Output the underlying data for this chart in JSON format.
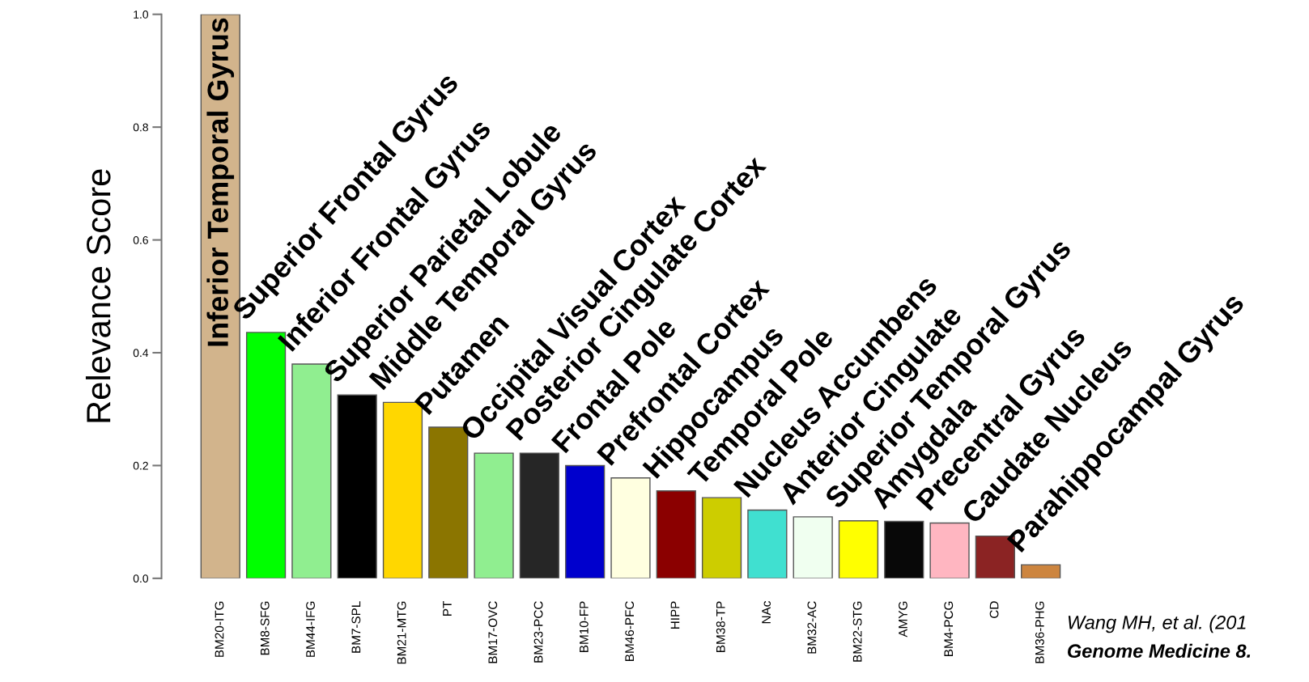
{
  "chart_data": {
    "type": "bar",
    "ylabel": "Relevance Score",
    "categories": [
      "BM20-ITG",
      "BM8-SFG",
      "BM44-IFG",
      "BM7-SPL",
      "BM21-MTG",
      "PT",
      "BM17-OVC",
      "BM23-PCC",
      "BM10-FP",
      "BM46-PFC",
      "HIPP",
      "BM38-TP",
      "NAc",
      "BM32-AC",
      "BM22-STG",
      "AMYG",
      "BM4-PCG",
      "CD",
      "BM36-PHG"
    ],
    "values": [
      1.0,
      0.436,
      0.38,
      0.325,
      0.312,
      0.268,
      0.222,
      0.222,
      0.2,
      0.178,
      0.155,
      0.143,
      0.121,
      0.109,
      0.102,
      0.101,
      0.098,
      0.075,
      0.024
    ],
    "colors": [
      "#d2b48c",
      "#00ff00",
      "#90ee90",
      "#000000",
      "#ffd700",
      "#8b7500",
      "#90ee90",
      "#262626",
      "#0000cd",
      "#ffffe0",
      "#8b0000",
      "#cdcd00",
      "#40e0d0",
      "#f0fff0",
      "#ffff00",
      "#080808",
      "#ffb6c1",
      "#8b2323",
      "#cd853f"
    ],
    "ylim": [
      0,
      1.0
    ],
    "yticks": [
      {
        "value": 0,
        "label": "0.0"
      },
      {
        "value": 0.2,
        "label": "0.2"
      },
      {
        "value": 0.4,
        "label": "0.4"
      },
      {
        "value": 0.6,
        "label": "0.6"
      },
      {
        "value": 0.8,
        "label": "0.8"
      },
      {
        "value": 1.0,
        "label": "1.0"
      }
    ],
    "grid": false,
    "legend": false,
    "annotations": [
      {
        "text": "Inferior Temporal Gyrus",
        "x": "BM20-ITG",
        "y": 1.0
      },
      {
        "text": "Superior Frontal Gyrus",
        "x": "BM8-SFG",
        "y": 0.436
      },
      {
        "text": "Inferior Frontal Gyrus",
        "x": "BM44-IFG",
        "y": 0.38
      },
      {
        "text": "Superior Parietal Lobule",
        "x": "BM7-SPL",
        "y": 0.325
      },
      {
        "text": "Middle Temporal Gyrus",
        "x": "BM21-MTG",
        "y": 0.312
      },
      {
        "text": "Putamen",
        "x": "PT",
        "y": 0.268
      },
      {
        "text": "Occipital Visual Cortex",
        "x": "BM17-OVC",
        "y": 0.222
      },
      {
        "text": "Posterior Cingulate Cortex",
        "x": "BM23-PCC",
        "y": 0.222
      },
      {
        "text": "Frontal Pole",
        "x": "BM10-FP",
        "y": 0.2
      },
      {
        "text": "Prefrontal Cortex",
        "x": "BM46-PFC",
        "y": 0.178
      },
      {
        "text": "Hippocampus",
        "x": "HIPP",
        "y": 0.155
      },
      {
        "text": "Temporal Pole",
        "x": "BM38-TP",
        "y": 0.143
      },
      {
        "text": "Nucleus Accumbens",
        "x": "NAc",
        "y": 0.121
      },
      {
        "text": "Anterior Cingulate",
        "x": "BM32-AC",
        "y": 0.109
      },
      {
        "text": "Superior Temporal Gyrus",
        "x": "BM22-STG",
        "y": 0.102
      },
      {
        "text": "Amygdala",
        "x": "AMYG",
        "y": 0.101
      },
      {
        "text": "Precentral Gyrus",
        "x": "BM4-PCG",
        "y": 0.098
      },
      {
        "text": "Caudate Nucleus",
        "x": "CD",
        "y": 0.075
      },
      {
        "text": "Parahippocampal Gyrus",
        "x": "BM36-PHG",
        "y": 0.024
      },
      "Wang MH, et al. (201",
      "Genome Medicine 8."
    ]
  }
}
